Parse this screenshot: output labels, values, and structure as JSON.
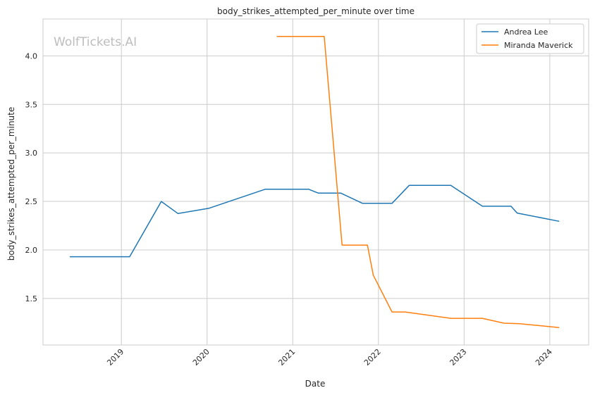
{
  "chart_data": {
    "type": "line",
    "title": "body_strikes_attempted_per_minute over time",
    "xlabel": "Date",
    "ylabel": "body_strikes_attempted_per_minute",
    "watermark": "WolfTickets.AI",
    "grid": true,
    "legend_position": "top-right",
    "x_ticks": [
      "2019",
      "2020",
      "2021",
      "2022",
      "2023",
      "2024"
    ],
    "y_ticks": [
      "1.5",
      "2.0",
      "2.5",
      "3.0",
      "3.5",
      "4.0"
    ],
    "xlim": [
      "2018-02-01",
      "2024-06-15"
    ],
    "ylim": [
      1.02,
      4.38
    ],
    "series": [
      {
        "name": "Andrea Lee",
        "color": "#1f77b4",
        "points": [
          [
            "2018-05-26",
            1.93
          ],
          [
            "2019-02-05",
            1.93
          ],
          [
            "2019-06-20",
            2.5
          ],
          [
            "2019-08-30",
            2.375
          ],
          [
            "2020-01-10",
            2.43
          ],
          [
            "2020-09-05",
            2.625
          ],
          [
            "2021-03-10",
            2.625
          ],
          [
            "2021-04-20",
            2.585
          ],
          [
            "2021-07-25",
            2.585
          ],
          [
            "2021-10-25",
            2.48
          ],
          [
            "2022-02-28",
            2.48
          ],
          [
            "2022-05-12",
            2.665
          ],
          [
            "2022-11-05",
            2.665
          ],
          [
            "2023-03-20",
            2.45
          ],
          [
            "2023-07-20",
            2.45
          ],
          [
            "2023-08-15",
            2.38
          ],
          [
            "2024-02-10",
            2.295
          ]
        ]
      },
      {
        "name": "Miranda Maverick",
        "color": "#ff7f0e",
        "points": [
          [
            "2020-10-25",
            4.2
          ],
          [
            "2021-05-15",
            4.2
          ],
          [
            "2021-07-30",
            2.05
          ],
          [
            "2021-11-15",
            2.05
          ],
          [
            "2021-12-10",
            1.74
          ],
          [
            "2022-02-28",
            1.36
          ],
          [
            "2022-04-25",
            1.36
          ],
          [
            "2022-11-05",
            1.295
          ],
          [
            "2023-03-20",
            1.295
          ],
          [
            "2023-06-20",
            1.245
          ],
          [
            "2023-08-25",
            1.24
          ],
          [
            "2024-02-10",
            1.2
          ]
        ]
      }
    ]
  }
}
